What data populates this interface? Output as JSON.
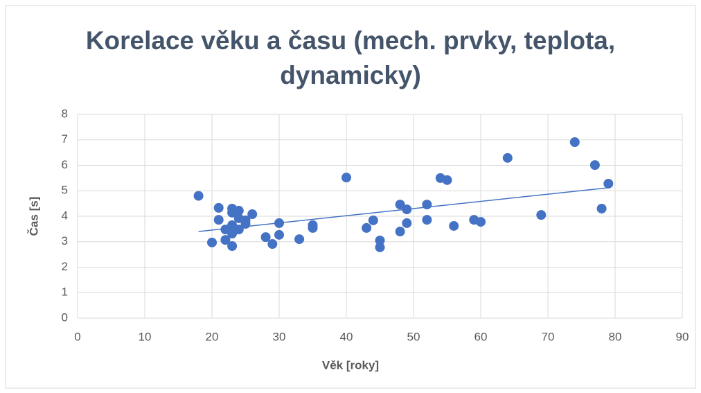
{
  "chart_data": {
    "type": "scatter",
    "title": "Korelace věku a času (mech. prvky, teplota, dynamicky)",
    "x_label": "Věk [roky]",
    "y_label": "Čas [s]",
    "series": [
      {
        "color": "#4472c4",
        "x": [
          18,
          20,
          21,
          21,
          22,
          22,
          23,
          23,
          23,
          23,
          23,
          24,
          24,
          24,
          25,
          25,
          26,
          28,
          29,
          30,
          30,
          33,
          35,
          35,
          40,
          43,
          44,
          45,
          45,
          48,
          48,
          49,
          49,
          52,
          52,
          54,
          55,
          56,
          59,
          60,
          64,
          69,
          74,
          77,
          78,
          79
        ],
        "values": [
          4.8,
          2.97,
          4.33,
          3.86,
          3.48,
          3.07,
          4.3,
          4.14,
          3.65,
          3.32,
          2.83,
          4.22,
          3.92,
          3.48,
          3.84,
          3.7,
          4.08,
          3.18,
          2.91,
          3.73,
          3.27,
          3.1,
          3.65,
          3.54,
          5.52,
          3.54,
          3.84,
          3.05,
          2.78,
          4.46,
          3.4,
          4.27,
          3.73,
          4.46,
          3.86,
          5.5,
          5.42,
          3.62,
          3.86,
          3.78,
          6.29,
          4.05,
          6.91,
          6.01,
          4.3,
          5.28
        ]
      }
    ],
    "trendline": {
      "color": "#4472c4",
      "x": [
        18,
        79
      ],
      "values": [
        3.4,
        5.12
      ]
    },
    "xlim": [
      0,
      90
    ],
    "xticks": [
      0,
      10,
      20,
      30,
      40,
      50,
      60,
      70,
      80,
      90
    ],
    "ylim": [
      0,
      8
    ],
    "yticks": [
      0,
      1,
      2,
      3,
      4,
      5,
      6,
      7,
      8
    ],
    "grid": true
  }
}
